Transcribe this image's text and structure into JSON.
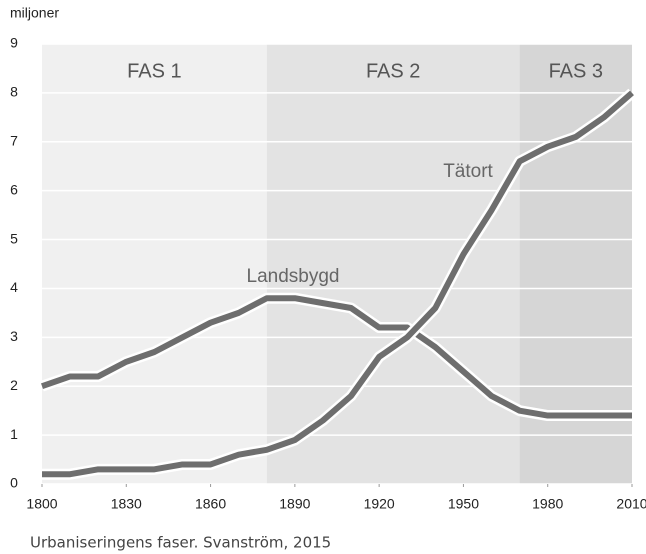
{
  "chart_data": {
    "type": "line",
    "y_label": "miljoner",
    "caption": "Urbaniseringens faser. Svanström, 2015",
    "x": [
      1800,
      1810,
      1820,
      1830,
      1840,
      1850,
      1860,
      1870,
      1880,
      1890,
      1900,
      1910,
      1920,
      1930,
      1940,
      1950,
      1960,
      1970,
      1980,
      1990,
      2000,
      2010
    ],
    "series": [
      {
        "name": "Landsbygd",
        "color": "#6e6e6e",
        "values": [
          2.0,
          2.2,
          2.2,
          2.5,
          2.7,
          3.0,
          3.3,
          3.5,
          3.8,
          3.8,
          3.7,
          3.6,
          3.2,
          3.2,
          2.8,
          2.3,
          1.8,
          1.5,
          1.4,
          1.4,
          1.4,
          1.4
        ]
      },
      {
        "name": "Tätort",
        "color": "#6e6e6e",
        "values": [
          0.2,
          0.2,
          0.3,
          0.3,
          0.3,
          0.4,
          0.4,
          0.6,
          0.7,
          0.9,
          1.3,
          1.8,
          2.6,
          3.0,
          3.6,
          4.7,
          5.6,
          6.6,
          6.9,
          7.1,
          7.5,
          8.0
        ]
      }
    ],
    "phases": [
      {
        "label": "FAS 1",
        "start": 1800,
        "end": 1880,
        "color": "#f0f0f0"
      },
      {
        "label": "FAS 2",
        "start": 1880,
        "end": 1970,
        "color": "#e3e3e3"
      },
      {
        "label": "FAS 3",
        "start": 1970,
        "end": 2010,
        "color": "#d6d6d6"
      }
    ],
    "xlim": [
      1800,
      2010
    ],
    "xticks": [
      1800,
      1830,
      1860,
      1890,
      1920,
      1950,
      1980,
      2010
    ],
    "ylim": [
      0,
      9
    ],
    "yticks": [
      0,
      1,
      2,
      3,
      4,
      5,
      6,
      7,
      8,
      9
    ],
    "grid": true
  }
}
